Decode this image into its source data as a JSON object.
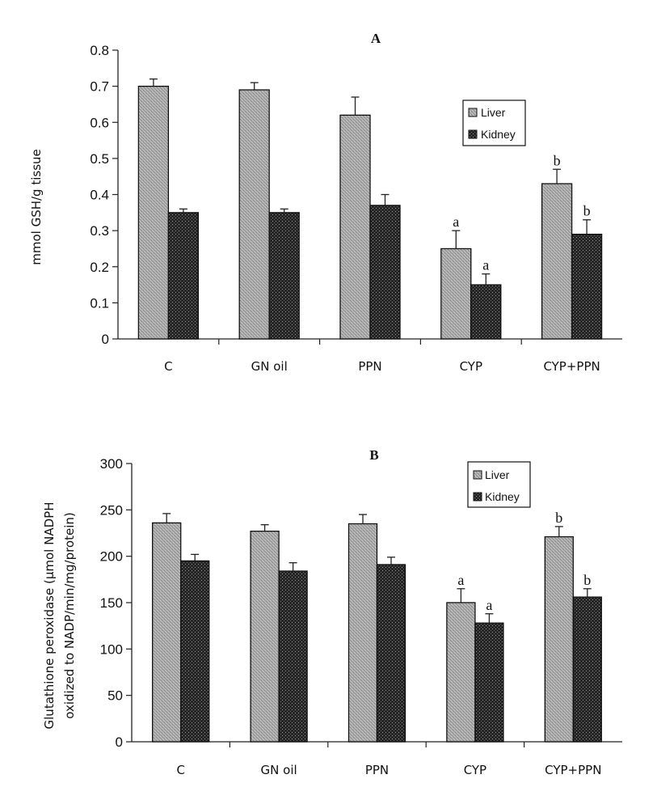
{
  "chart_data": [
    {
      "type": "bar",
      "title": "A",
      "xlabel": "",
      "ylabel": "mmol GSH/g tissue",
      "ylim": [
        0,
        0.8
      ],
      "yticks": [
        "0",
        "0.1",
        "0.2",
        "0.3",
        "0.4",
        "0.5",
        "0.6",
        "0.7",
        "0.8"
      ],
      "ytick_values": [
        0,
        0.1,
        0.2,
        0.3,
        0.4,
        0.5,
        0.6,
        0.7,
        0.8
      ],
      "categories": [
        "C",
        "GN oil",
        "PPN",
        "CYP",
        "CYP+PPN"
      ],
      "legend": {
        "position": "top-right",
        "entries": [
          "Liver",
          "Kidney"
        ]
      },
      "grid": false,
      "series": [
        {
          "name": "Liver",
          "color": "#a8a8a8",
          "values": [
            0.7,
            0.69,
            0.62,
            0.25,
            0.43
          ],
          "errors": [
            0.02,
            0.02,
            0.05,
            0.05,
            0.04
          ],
          "annotations": [
            "",
            "",
            "",
            "a",
            "b"
          ]
        },
        {
          "name": "Kidney",
          "color": "#2a2a2a",
          "values": [
            0.35,
            0.35,
            0.37,
            0.15,
            0.29
          ],
          "errors": [
            0.01,
            0.01,
            0.03,
            0.03,
            0.04
          ],
          "annotations": [
            "",
            "",
            "",
            "a",
            "b"
          ]
        }
      ]
    },
    {
      "type": "bar",
      "title": "B",
      "xlabel": "",
      "ylabel": "Glutathione peroxidase (µmol NADPH oxidized to NADP/min/mg/protein)",
      "ylabel_lines": [
        "Glutathione peroxidase (µmol NADPH",
        "oxidized to NADP/min/mg/protein)"
      ],
      "ylim": [
        0,
        300
      ],
      "yticks": [
        "0",
        "50",
        "100",
        "150",
        "200",
        "250",
        "300"
      ],
      "ytick_values": [
        0,
        50,
        100,
        150,
        200,
        250,
        300
      ],
      "categories": [
        "C",
        "GN oil",
        "PPN",
        "CYP",
        "CYP+PPN"
      ],
      "legend": {
        "position": "top-right",
        "entries": [
          "Liver",
          "Kidney"
        ]
      },
      "grid": false,
      "series": [
        {
          "name": "Liver",
          "color": "#a8a8a8",
          "values": [
            236,
            227,
            235,
            150,
            221
          ],
          "errors": [
            10,
            7,
            10,
            15,
            11
          ],
          "annotations": [
            "",
            "",
            "",
            "a",
            "b"
          ]
        },
        {
          "name": "Kidney",
          "color": "#2a2a2a",
          "values": [
            195,
            184,
            191,
            128,
            156
          ],
          "errors": [
            7,
            9,
            8,
            10,
            9
          ],
          "annotations": [
            "",
            "",
            "",
            "a",
            "b"
          ]
        }
      ]
    }
  ]
}
